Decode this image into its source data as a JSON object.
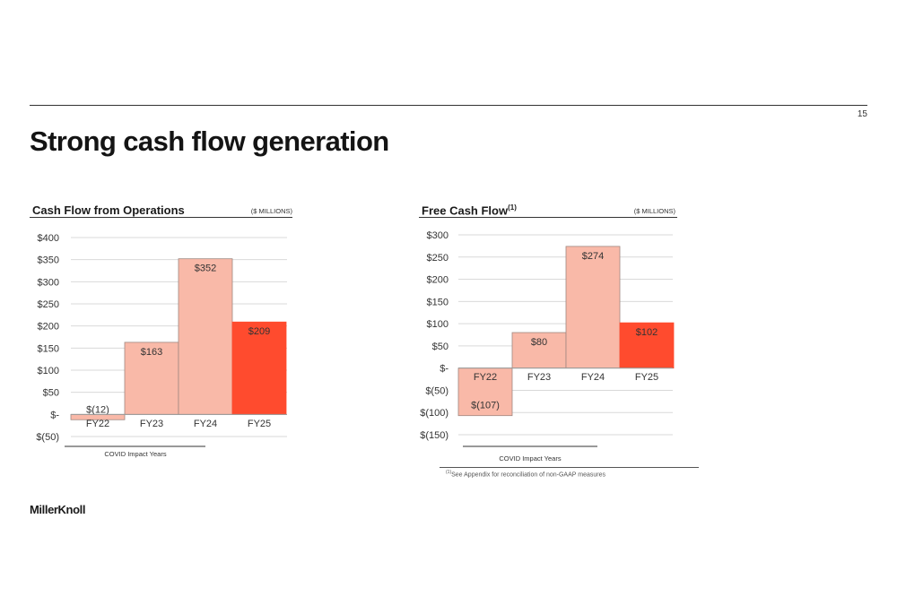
{
  "page": {
    "title": "Strong cash flow generation",
    "page_number": "15",
    "logo": "MillerKnoll",
    "footnote_marker": "(1)",
    "footnote": "See Appendix for reconciliation of non-GAAP measures"
  },
  "colors": {
    "bar_light": "#f9b9a8",
    "bar_highlight": "#ff4b2e",
    "bar_border": "#a08880",
    "gridline": "#d9d9d9",
    "axis_text": "#333333",
    "rule": "#333333"
  },
  "chart_data": [
    {
      "type": "bar",
      "title": "Cash Flow from Operations",
      "unit": "($ MILLIONS)",
      "categories": [
        "FY22",
        "FY23",
        "FY24",
        "FY25"
      ],
      "values": [
        -12,
        163,
        352,
        209
      ],
      "value_labels": [
        "$(12)",
        "$163",
        "$352",
        "$209"
      ],
      "highlight": [
        false,
        false,
        false,
        true
      ],
      "ylim": [
        -50,
        400
      ],
      "ytick_values": [
        400,
        350,
        300,
        250,
        200,
        150,
        100,
        50,
        0,
        -50
      ],
      "ytick_labels": [
        "$400",
        "$350",
        "$300",
        "$250",
        "$200",
        "$150",
        "$100",
        "$50",
        "$-",
        "$(50)"
      ],
      "bracket_label": "COVID Impact Years",
      "bracket_categories": [
        "FY22",
        "FY23"
      ],
      "grid": true,
      "legend": "none"
    },
    {
      "type": "bar",
      "title": "Free Cash Flow",
      "title_superscript": "(1)",
      "unit": "($ MILLIONS)",
      "categories": [
        "FY22",
        "FY23",
        "FY24",
        "FY25"
      ],
      "values": [
        -107,
        80,
        274,
        102
      ],
      "value_labels": [
        "$(107)",
        "$80",
        "$274",
        "$102"
      ],
      "highlight": [
        false,
        false,
        false,
        true
      ],
      "ylim": [
        -150,
        300
      ],
      "ytick_values": [
        300,
        250,
        200,
        150,
        100,
        50,
        0,
        -50,
        -100,
        -150
      ],
      "ytick_labels": [
        "$300",
        "$250",
        "$200",
        "$150",
        "$100",
        "$50",
        "$-",
        "$(50)",
        "$(100)",
        "$(150)"
      ],
      "bracket_label": "COVID Impact Years",
      "bracket_categories": [
        "FY22",
        "FY23"
      ],
      "grid": true,
      "legend": "none"
    }
  ]
}
